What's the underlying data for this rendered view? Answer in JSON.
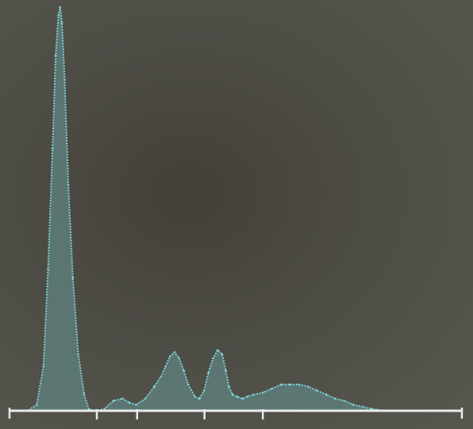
{
  "chart_data": {
    "type": "area",
    "title": "",
    "xlabel": "",
    "ylabel": "",
    "x_range": [
      0,
      100
    ],
    "y_range": [
      0,
      100
    ],
    "grid": false,
    "x_ticks": [
      19.3,
      28.2,
      43.1,
      56.0
    ],
    "series": [
      {
        "x": [
          0,
          4,
          6,
          7.5,
          8.5,
          9.5,
          10.2,
          10.8,
          11.2,
          11.6,
          12.2,
          13,
          14,
          15.2,
          16.5,
          17.5,
          18.5,
          19.5,
          21,
          23,
          25,
          26.5,
          28,
          30,
          32,
          33.5,
          34.5,
          35.5,
          36.5,
          37.5,
          38.5,
          39.5,
          41,
          42,
          43,
          44,
          45,
          46,
          47,
          47.8,
          48.5,
          49.3,
          50.3,
          51.5,
          52.5,
          54,
          56,
          58,
          60,
          62,
          64,
          66,
          68,
          70,
          72,
          74,
          76,
          78,
          80,
          81,
          82,
          83,
          90,
          100
        ],
        "y": [
          0,
          0,
          1.5,
          11,
          35,
          65,
          88,
          98,
          100,
          96,
          82,
          56,
          33,
          14,
          4,
          0.5,
          0,
          0,
          0.5,
          2.5,
          3,
          2,
          1.5,
          3,
          6,
          8.5,
          11,
          13.5,
          14.5,
          13,
          10,
          6.5,
          3.5,
          3,
          5,
          9.5,
          13,
          15,
          14,
          10,
          6,
          4,
          3.5,
          3,
          3.5,
          4,
          4.5,
          5.5,
          6.5,
          6.5,
          6.5,
          6,
          5,
          4,
          3,
          2.5,
          1.5,
          1,
          0.5,
          0.3,
          0.1,
          0,
          0,
          0
        ]
      }
    ],
    "colors": {
      "line": "#7fcfd3",
      "fill": "#5e7c7b",
      "axis": "#e8ebe9"
    }
  }
}
